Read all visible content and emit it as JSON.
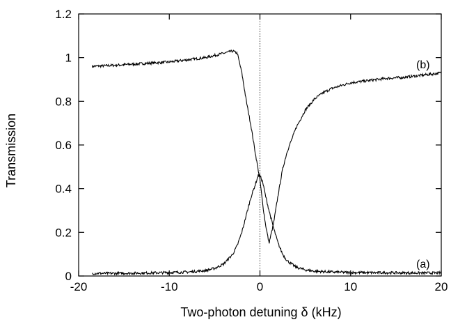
{
  "chart_data": {
    "type": "line",
    "xlabel": "Two-photon detuning δ (kHz)",
    "ylabel": "Transmission",
    "xlim": [
      -20,
      20
    ],
    "ylim": [
      0,
      1.2
    ],
    "x_ticks": [
      -20,
      -10,
      0,
      10,
      20
    ],
    "x_tick_labels": [
      "-20",
      "-10",
      "0",
      "10",
      "20"
    ],
    "y_ticks": [
      0,
      0.2,
      0.4,
      0.6,
      0.8,
      1.0,
      1.2
    ],
    "y_tick_labels": [
      "0",
      "0.2",
      "0.4",
      "0.6",
      "0.8",
      "1",
      "1.2"
    ],
    "reference_line_x": 0,
    "grid": false,
    "legend": "none",
    "series": [
      {
        "label": "(b)",
        "x": [
          -18.5,
          -16,
          -14,
          -12,
          -10,
          -8,
          -6,
          -4,
          -3,
          -2.5,
          -2,
          -1.5,
          -1,
          -0.5,
          0,
          0.3,
          0.6,
          1,
          1.5,
          2,
          2.5,
          3,
          4,
          5,
          6,
          7,
          8,
          10,
          12,
          14,
          16,
          18,
          20
        ],
        "y": [
          0.96,
          0.965,
          0.97,
          0.975,
          0.98,
          0.99,
          1.0,
          1.02,
          1.03,
          1.02,
          0.93,
          0.8,
          0.69,
          0.56,
          0.44,
          0.33,
          0.24,
          0.15,
          0.24,
          0.37,
          0.49,
          0.57,
          0.68,
          0.76,
          0.81,
          0.84,
          0.86,
          0.885,
          0.895,
          0.905,
          0.91,
          0.92,
          0.93
        ],
        "color": "#000000"
      },
      {
        "label": "(a)",
        "x": [
          -18.5,
          -16,
          -14,
          -12,
          -10,
          -8,
          -6,
          -5,
          -4,
          -3,
          -2.5,
          -2,
          -1.5,
          -1,
          -0.5,
          -0.2,
          0,
          0.3,
          0.6,
          1,
          1.5,
          2,
          2.5,
          3,
          4,
          5,
          6,
          8,
          10,
          12,
          14,
          16,
          18,
          20
        ],
        "y": [
          0.012,
          0.012,
          0.013,
          0.014,
          0.016,
          0.018,
          0.025,
          0.035,
          0.055,
          0.1,
          0.14,
          0.2,
          0.28,
          0.36,
          0.42,
          0.46,
          0.46,
          0.43,
          0.37,
          0.3,
          0.22,
          0.15,
          0.1,
          0.07,
          0.04,
          0.028,
          0.022,
          0.018,
          0.016,
          0.015,
          0.015,
          0.014,
          0.014,
          0.014
        ],
        "color": "#000000"
      }
    ]
  }
}
